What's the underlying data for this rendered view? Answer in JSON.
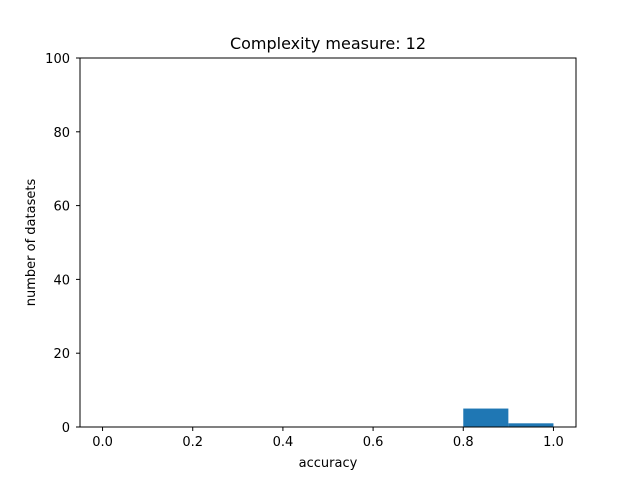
{
  "chart_data": {
    "type": "bar",
    "title": "Complexity measure: 12",
    "xlabel": "accuracy",
    "ylabel": "number of datasets",
    "xlim": [
      -0.05,
      1.05
    ],
    "ylim": [
      0,
      100
    ],
    "xticks": [
      0.0,
      0.2,
      0.4,
      0.6,
      0.8,
      1.0
    ],
    "xtick_labels": [
      "0.0",
      "0.2",
      "0.4",
      "0.6",
      "0.8",
      "1.0"
    ],
    "yticks": [
      0,
      20,
      40,
      60,
      80,
      100
    ],
    "ytick_labels": [
      "0",
      "20",
      "40",
      "60",
      "80",
      "100"
    ],
    "bins": [
      {
        "start": 0.8,
        "end": 0.9,
        "value": 5
      },
      {
        "start": 0.9,
        "end": 1.0,
        "value": 1
      }
    ],
    "bar_color": "#1f77b4",
    "grid": false,
    "legend": false
  }
}
